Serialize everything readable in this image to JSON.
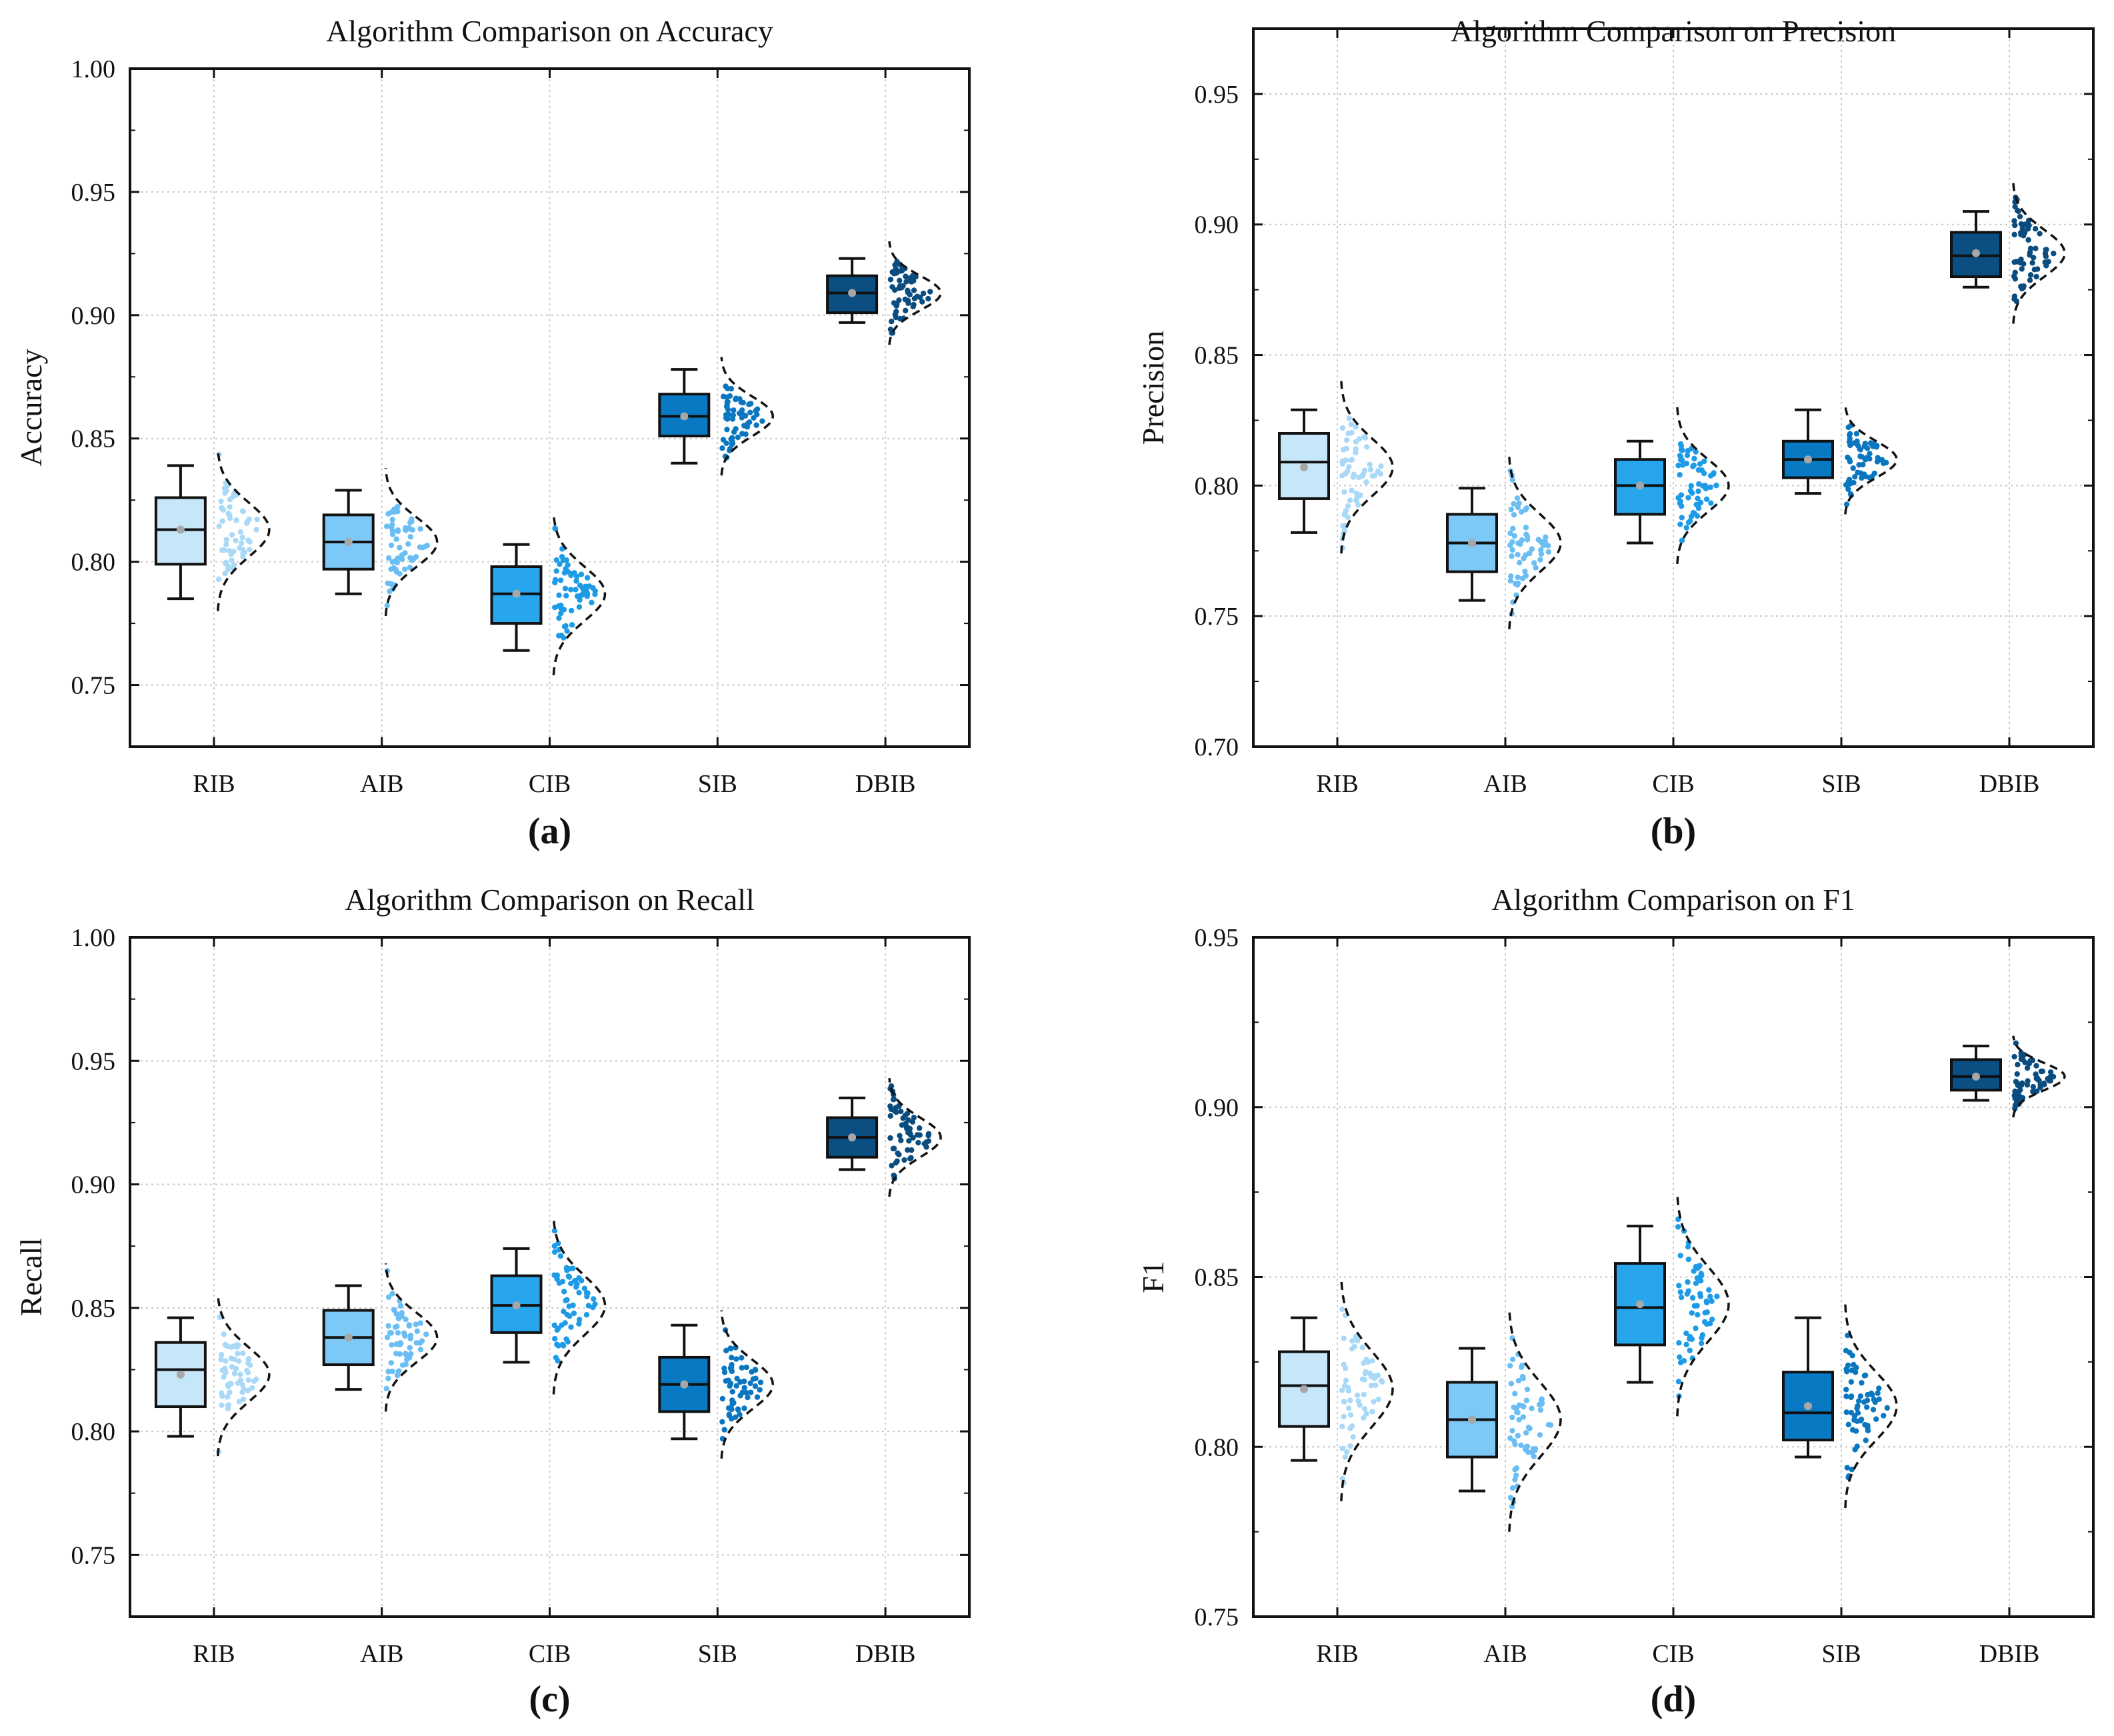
{
  "colors": {
    "RIB": "#c6e6fa",
    "AIB": "#7cc8f6",
    "CIB": "#27a6ee",
    "SIB": "#0a79c4",
    "DBIB": "#0a4e82",
    "dots": [
      "#a9d9f7",
      "#6bbef3",
      "#1e9be6",
      "#0b76c0",
      "#0a4c7e"
    ]
  },
  "chart_data": [
    {
      "type": "box",
      "title": "Algorithm Comparison on Accuracy",
      "ylabel": "Accuracy",
      "subfigure": "(a)",
      "ylim": [
        0.725,
        1.0
      ],
      "yticks": [
        0.75,
        0.8,
        0.85,
        0.9,
        0.95,
        1.0
      ],
      "ytick_labels": [
        "0.75",
        "0.80",
        "0.85",
        "0.90",
        "0.95",
        "1.00"
      ],
      "categories": [
        "RIB",
        "AIB",
        "CIB",
        "SIB",
        "DBIB"
      ],
      "boxes": [
        {
          "name": "RIB",
          "whislo": 0.785,
          "q1": 0.799,
          "med": 0.813,
          "q3": 0.826,
          "whishi": 0.839,
          "mean": 0.813,
          "spread": 0.011
        },
        {
          "name": "AIB",
          "whislo": 0.787,
          "q1": 0.797,
          "med": 0.808,
          "q3": 0.819,
          "whishi": 0.829,
          "mean": 0.808,
          "spread": 0.01
        },
        {
          "name": "CIB",
          "whislo": 0.764,
          "q1": 0.775,
          "med": 0.787,
          "q3": 0.798,
          "whishi": 0.807,
          "mean": 0.787,
          "spread": 0.011
        },
        {
          "name": "SIB",
          "whislo": 0.84,
          "q1": 0.851,
          "med": 0.859,
          "q3": 0.868,
          "whishi": 0.878,
          "mean": 0.859,
          "spread": 0.008
        },
        {
          "name": "DBIB",
          "whislo": 0.897,
          "q1": 0.901,
          "med": 0.909,
          "q3": 0.916,
          "whishi": 0.923,
          "mean": 0.909,
          "spread": 0.007
        }
      ]
    },
    {
      "type": "box",
      "title": "Algorithm Comparison on Precision",
      "ylabel": "Precision",
      "subfigure": "(b)",
      "ylim": [
        0.7,
        0.975
      ],
      "yticks": [
        0.7,
        0.75,
        0.8,
        0.85,
        0.9,
        0.95
      ],
      "ytick_labels": [
        "0.70",
        "0.75",
        "0.80",
        "0.85",
        "0.90",
        "0.95"
      ],
      "categories": [
        "RIB",
        "AIB",
        "CIB",
        "SIB",
        "DBIB"
      ],
      "boxes": [
        {
          "name": "RIB",
          "whislo": 0.782,
          "q1": 0.795,
          "med": 0.809,
          "q3": 0.82,
          "whishi": 0.829,
          "mean": 0.807,
          "spread": 0.011
        },
        {
          "name": "AIB",
          "whislo": 0.756,
          "q1": 0.767,
          "med": 0.778,
          "q3": 0.789,
          "whishi": 0.799,
          "mean": 0.778,
          "spread": 0.011
        },
        {
          "name": "CIB",
          "whislo": 0.778,
          "q1": 0.789,
          "med": 0.8,
          "q3": 0.81,
          "whishi": 0.817,
          "mean": 0.8,
          "spread": 0.01
        },
        {
          "name": "SIB",
          "whislo": 0.797,
          "q1": 0.803,
          "med": 0.81,
          "q3": 0.817,
          "whishi": 0.829,
          "mean": 0.81,
          "spread": 0.007
        },
        {
          "name": "DBIB",
          "whislo": 0.876,
          "q1": 0.88,
          "med": 0.888,
          "q3": 0.897,
          "whishi": 0.905,
          "mean": 0.889,
          "spread": 0.009
        }
      ]
    },
    {
      "type": "box",
      "title": "Algorithm Comparison on Recall",
      "ylabel": "Recall",
      "subfigure": "(c)",
      "ylim": [
        0.725,
        1.0
      ],
      "yticks": [
        0.75,
        0.8,
        0.85,
        0.9,
        0.95,
        1.0
      ],
      "ytick_labels": [
        "0.75",
        "0.80",
        "0.85",
        "0.90",
        "0.95",
        "1.00"
      ],
      "categories": [
        "RIB",
        "AIB",
        "CIB",
        "SIB",
        "DBIB"
      ],
      "boxes": [
        {
          "name": "RIB",
          "whislo": 0.798,
          "q1": 0.81,
          "med": 0.825,
          "q3": 0.836,
          "whishi": 0.846,
          "mean": 0.823,
          "spread": 0.011
        },
        {
          "name": "AIB",
          "whislo": 0.817,
          "q1": 0.827,
          "med": 0.838,
          "q3": 0.849,
          "whishi": 0.859,
          "mean": 0.838,
          "spread": 0.01
        },
        {
          "name": "CIB",
          "whislo": 0.828,
          "q1": 0.84,
          "med": 0.851,
          "q3": 0.863,
          "whishi": 0.874,
          "mean": 0.851,
          "spread": 0.012
        },
        {
          "name": "SIB",
          "whislo": 0.797,
          "q1": 0.808,
          "med": 0.819,
          "q3": 0.83,
          "whishi": 0.843,
          "mean": 0.819,
          "spread": 0.01
        },
        {
          "name": "DBIB",
          "whislo": 0.906,
          "q1": 0.911,
          "med": 0.919,
          "q3": 0.927,
          "whishi": 0.935,
          "mean": 0.919,
          "spread": 0.008
        }
      ]
    },
    {
      "type": "box",
      "title": "Algorithm Comparison on F1",
      "ylabel": "F1",
      "subfigure": "(d)",
      "ylim": [
        0.75,
        0.95
      ],
      "yticks": [
        0.75,
        0.8,
        0.85,
        0.9,
        0.95
      ],
      "ytick_labels": [
        "0.75",
        "0.80",
        "0.85",
        "0.90",
        "0.95"
      ],
      "categories": [
        "RIB",
        "AIB",
        "CIB",
        "SIB",
        "DBIB"
      ],
      "boxes": [
        {
          "name": "RIB",
          "whislo": 0.796,
          "q1": 0.806,
          "med": 0.818,
          "q3": 0.828,
          "whishi": 0.838,
          "mean": 0.817,
          "spread": 0.011
        },
        {
          "name": "AIB",
          "whislo": 0.787,
          "q1": 0.797,
          "med": 0.808,
          "q3": 0.819,
          "whishi": 0.829,
          "mean": 0.808,
          "spread": 0.011
        },
        {
          "name": "CIB",
          "whislo": 0.819,
          "q1": 0.83,
          "med": 0.841,
          "q3": 0.854,
          "whishi": 0.865,
          "mean": 0.842,
          "spread": 0.011
        },
        {
          "name": "SIB",
          "whislo": 0.797,
          "q1": 0.802,
          "med": 0.81,
          "q3": 0.822,
          "whishi": 0.838,
          "mean": 0.812,
          "spread": 0.01
        },
        {
          "name": "DBIB",
          "whislo": 0.902,
          "q1": 0.905,
          "med": 0.909,
          "q3": 0.914,
          "whishi": 0.918,
          "mean": 0.909,
          "spread": 0.004
        }
      ]
    }
  ]
}
